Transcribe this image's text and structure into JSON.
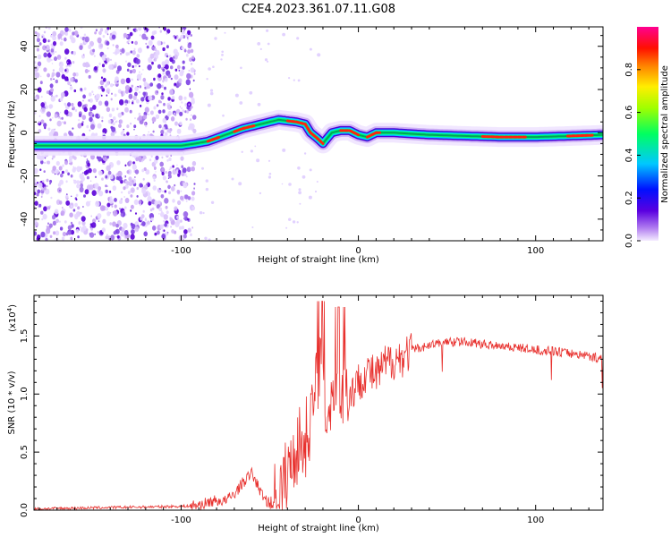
{
  "title": "C2E4.2023.361.07.11.G08",
  "chart_data": [
    {
      "type": "heatmap",
      "xlabel": "Height of straight line (km)",
      "ylabel": "Frequency (Hz)",
      "xlim": [
        -183,
        138
      ],
      "ylim": [
        -50,
        49
      ],
      "x_ticks": [
        -100,
        0,
        100
      ],
      "y_ticks": [
        -40,
        -20,
        0,
        20,
        40
      ],
      "colorbar": {
        "label": "Normalized spectral amplitude",
        "range": [
          0,
          1
        ],
        "ticks": [
          0.0,
          0.2,
          0.4,
          0.6,
          0.8
        ],
        "colormap": [
          "#f0e0ff",
          "#8a2be2",
          "#0000ff",
          "#00ffff",
          "#00ff00",
          "#ffff00",
          "#ff8000",
          "#ff0000",
          "#ff0080"
        ]
      },
      "ridge": {
        "x": [
          -183,
          -150,
          -120,
          -100,
          -92,
          -85,
          -75,
          -65,
          -55,
          -45,
          -35,
          -30,
          -27,
          -24,
          -20,
          -15,
          -10,
          -5,
          0,
          5,
          10,
          20,
          40,
          60,
          80,
          100,
          120,
          138
        ],
        "y": [
          -6,
          -6,
          -6,
          -6,
          -5,
          -4,
          -1,
          2,
          4,
          6,
          5,
          4,
          0,
          -2,
          -5,
          0,
          1,
          1,
          -1,
          -2,
          0,
          0,
          -1,
          -1.5,
          -2,
          -2,
          -1.5,
          -1
        ]
      },
      "noise_region_x": [
        -183,
        -92
      ]
    },
    {
      "type": "line",
      "xlabel": "Height of straight line (km)",
      "ylabel": "SNR (10 * v/v)",
      "y_multiplier": "(x10^4)",
      "xlim": [
        -183,
        138
      ],
      "ylim": [
        0,
        1.85
      ],
      "x_ticks": [
        -100,
        0,
        100
      ],
      "y_ticks": [
        0.0,
        0.5,
        1.0,
        1.5
      ],
      "color": "#e8312e",
      "series": [
        {
          "x": [
            -183,
            -170,
            -150,
            -130,
            -110,
            -95,
            -88,
            -82,
            -75,
            -70,
            -65,
            -60,
            -55,
            -50,
            -45,
            -40,
            -35,
            -30,
            -25,
            -22,
            -20,
            -18,
            -15,
            -12,
            -10,
            -8,
            -5,
            0,
            5,
            10,
            15,
            20,
            25,
            30,
            40,
            50,
            60,
            70,
            80,
            90,
            100,
            110,
            120,
            130,
            138
          ],
          "y": [
            0.01,
            0.015,
            0.02,
            0.025,
            0.03,
            0.035,
            0.05,
            0.08,
            0.08,
            0.14,
            0.24,
            0.32,
            0.15,
            0.05,
            0.12,
            0.3,
            0.55,
            0.6,
            0.95,
            1.3,
            0.9,
            0.8,
            1.0,
            1.15,
            1.0,
            1.05,
            1.0,
            1.1,
            1.2,
            1.15,
            1.25,
            1.3,
            1.32,
            1.38,
            1.42,
            1.45,
            1.45,
            1.43,
            1.42,
            1.4,
            1.38,
            1.37,
            1.35,
            1.33,
            1.3
          ]
        }
      ]
    }
  ]
}
